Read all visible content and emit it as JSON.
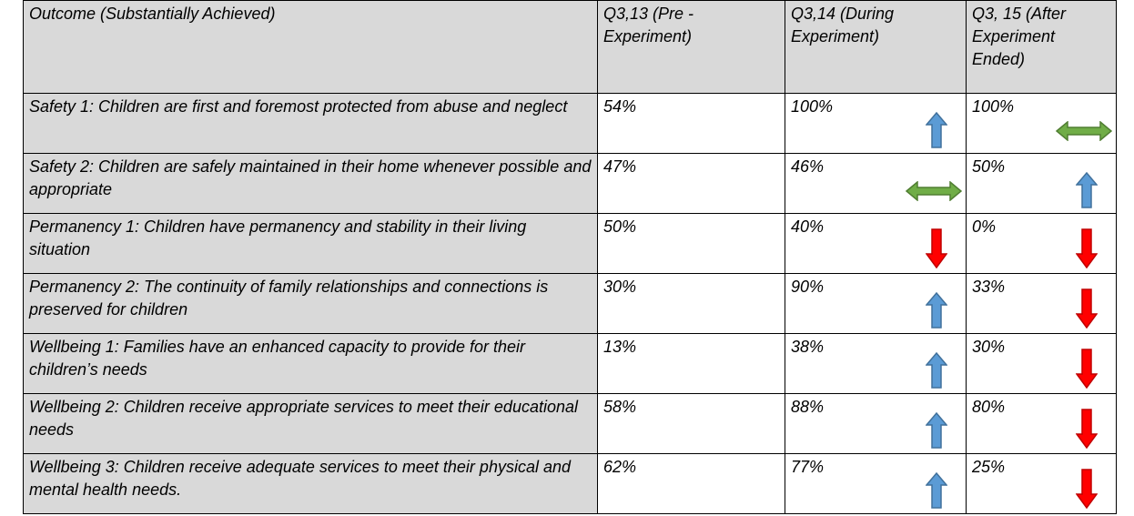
{
  "table": {
    "header": [
      "Outcome (Substantially Achieved)",
      "Q3,13 (Pre - Experiment)",
      "Q3,14 (During Experiment)",
      "Q3, 15 (After Experiment Ended)"
    ],
    "rows": [
      [
        "Safety 1: Children are first and foremost protected from abuse and neglect",
        "54%",
        "100%",
        "100%"
      ],
      [
        "Safety 2: Children are safely maintained in their home whenever possible and appropriate",
        "47%",
        "46%",
        "50%"
      ],
      [
        "Permanency 1: Children have permanency and stability in their living situation",
        "50%",
        "40%",
        "0%"
      ],
      [
        "Permanency 2: The continuity of family relationships and connections is preserved for children",
        "30%",
        "90%",
        "33%"
      ],
      [
        "Wellbeing 1: Families have an enhanced capacity to provide for their children’s needs",
        "13%",
        "38%",
        "30%"
      ],
      [
        "Wellbeing 2: Children receive appropriate services to meet their educational needs",
        "58%",
        "88%",
        "80%"
      ],
      [
        "Wellbeing 3: Children receive adequate services to meet their physical and mental health needs.",
        "62%",
        "77%",
        "25%"
      ]
    ]
  }
}
